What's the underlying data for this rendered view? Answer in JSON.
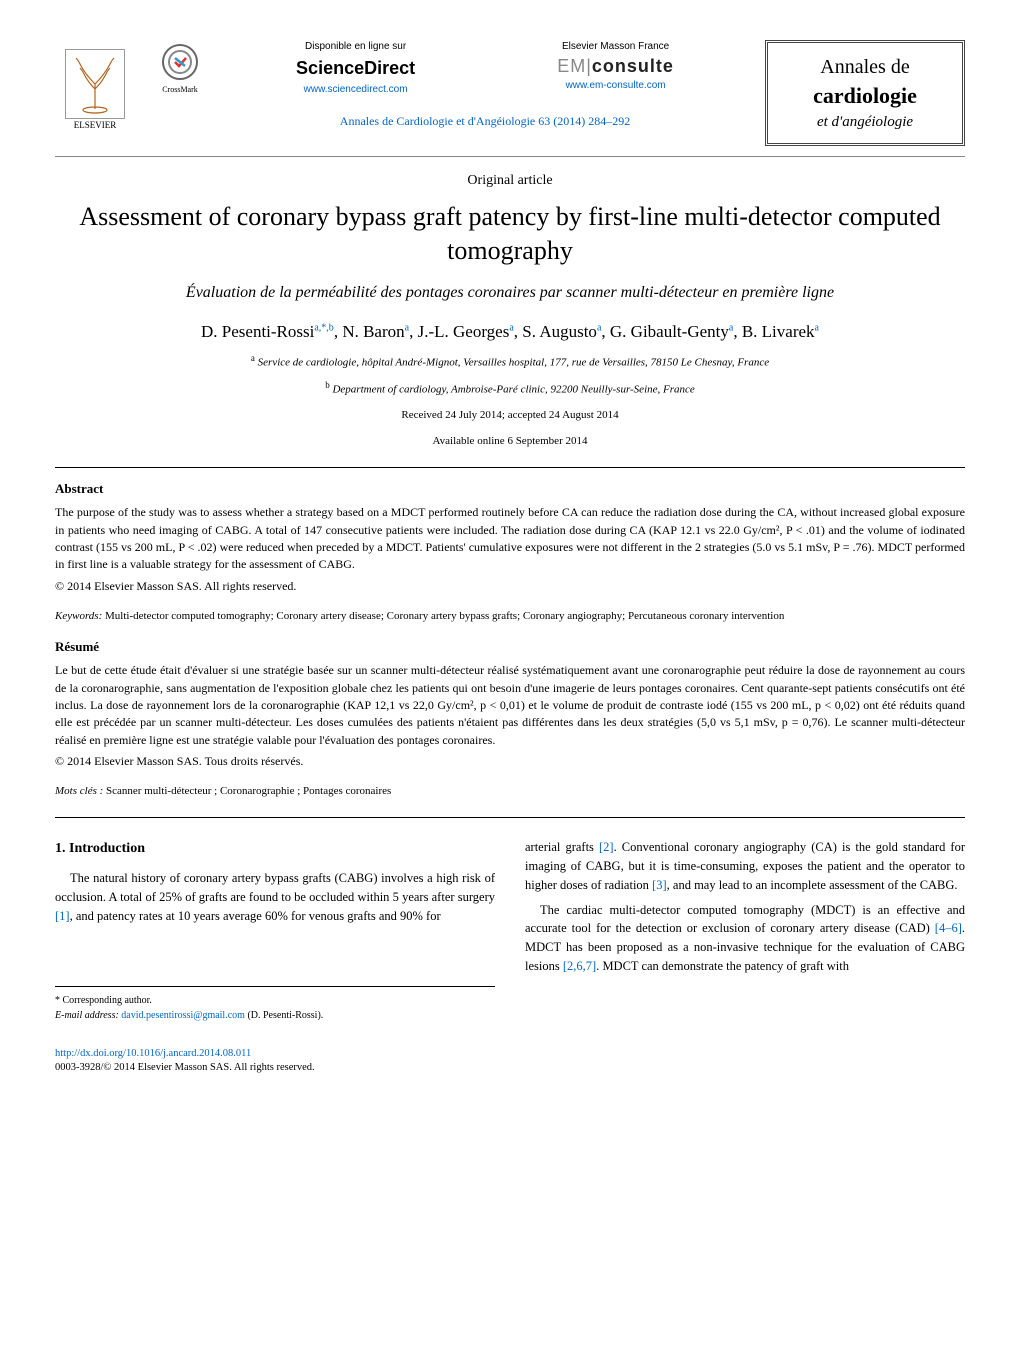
{
  "header": {
    "elsevier_label": "ELSEVIER",
    "crossmark_label": "CrossMark",
    "sciencedirect": {
      "avail": "Disponible en ligne sur",
      "brand": "ScienceDirect",
      "url": "www.sciencedirect.com"
    },
    "emconsulte": {
      "top": "Elsevier Masson France",
      "brand_light": "EM|",
      "brand_bold": "consulte",
      "url": "www.em-consulte.com"
    },
    "journal_ref": "Annales de Cardiologie et d'Angéiologie 63 (2014) 284–292",
    "journal_box": {
      "line1": "Annales de",
      "line2": "cardiologie",
      "line3": "et d'angéiologie"
    }
  },
  "article": {
    "type": "Original article",
    "title": "Assessment of coronary bypass graft patency by first-line multi-detector computed tomography",
    "subtitle": "Évaluation de la perméabilité des pontages coronaires par scanner multi-détecteur en première ligne",
    "authors_html": "D. Pesenti-Rossi",
    "authors": [
      {
        "name": "D. Pesenti-Rossi",
        "sup": "a,*,b"
      },
      {
        "name": "N. Baron",
        "sup": "a"
      },
      {
        "name": "J.-L. Georges",
        "sup": "a"
      },
      {
        "name": "S. Augusto",
        "sup": "a"
      },
      {
        "name": "G. Gibault-Genty",
        "sup": "a"
      },
      {
        "name": "B. Livarek",
        "sup": "a"
      }
    ],
    "affiliations": [
      {
        "sup": "a",
        "text": "Service de cardiologie, hôpital André-Mignot, Versailles hospital, 177, rue de Versailles, 78150 Le Chesnay, France"
      },
      {
        "sup": "b",
        "text": "Department of cardiology, Ambroise-Paré clinic, 92200 Neuilly-sur-Seine, France"
      }
    ],
    "received": "Received 24 July 2014; accepted 24 August 2014",
    "online": "Available online 6 September 2014"
  },
  "abstract": {
    "head": "Abstract",
    "text": "The purpose of the study was to assess whether a strategy based on a MDCT performed routinely before CA can reduce the radiation dose during the CA, without increased global exposure in patients who need imaging of CABG. A total of 147 consecutive patients were included. The radiation dose during CA (KAP 12.1 vs 22.0 Gy/cm², P < .01) and the volume of iodinated contrast (155 vs 200 mL, P < .02) were reduced when preceded by a MDCT. Patients' cumulative exposures were not different in the 2 strategies (5.0 vs 5.1 mSv, P = .76). MDCT performed in first line is a valuable strategy for the assessment of CABG.",
    "copyright": "© 2014 Elsevier Masson SAS. All rights reserved.",
    "keywords_label": "Keywords:",
    "keywords": "Multi-detector computed tomography; Coronary artery disease; Coronary artery bypass grafts; Coronary angiography; Percutaneous coronary intervention"
  },
  "resume": {
    "head": "Résumé",
    "text": "Le but de cette étude était d'évaluer si une stratégie basée sur un scanner multi-détecteur réalisé systématiquement avant une coronarographie peut réduire la dose de rayonnement au cours de la coronarographie, sans augmentation de l'exposition globale chez les patients qui ont besoin d'une imagerie de leurs pontages coronaires. Cent quarante-sept patients consécutifs ont été inclus. La dose de rayonnement lors de la coronarographie (KAP 12,1 vs 22,0 Gy/cm², p < 0,01) et le volume de produit de contraste iodé (155 vs 200 mL, p < 0,02) ont été réduits quand elle est précédée par un scanner multi-détecteur. Les doses cumulées des patients n'étaient pas différentes dans les deux stratégies (5,0 vs 5,1 mSv, p = 0,76). Le scanner multi-détecteur réalisé en première ligne est une stratégie valable pour l'évaluation des pontages coronaires.",
    "copyright": "© 2014 Elsevier Masson SAS. Tous droits réservés.",
    "keywords_label": "Mots clés :",
    "keywords": "Scanner multi-détecteur ; Coronarographie ; Pontages coronaires"
  },
  "body": {
    "intro_head": "1. Introduction",
    "left_p1_a": "The natural history of coronary artery bypass grafts (CABG) involves a high risk of occlusion. A total of 25% of grafts are found to be occluded within 5 years after surgery ",
    "left_ref1": "[1]",
    "left_p1_b": ", and patency rates at 10 years average 60% for venous grafts and 90% for",
    "right_p1_a": "arterial grafts ",
    "right_ref2": "[2]",
    "right_p1_b": ". Conventional coronary angiography (CA) is the gold standard for imaging of CABG, but it is time-consuming, exposes the patient and the operator to higher doses of radiation ",
    "right_ref3": "[3]",
    "right_p1_c": ", and may lead to an incomplete assessment of the CABG.",
    "right_p2_a": "The cardiac multi-detector computed tomography (MDCT) is an effective and accurate tool for the detection or exclusion of coronary artery disease (CAD) ",
    "right_ref46": "[4–6]",
    "right_p2_b": ". MDCT has been proposed as a non-invasive technique for the evaluation of CABG lesions ",
    "right_ref267": "[2,6,7]",
    "right_p2_c": ". MDCT can demonstrate the patency of graft with"
  },
  "footnotes": {
    "corr": "* Corresponding author.",
    "email_label": "E-mail address:",
    "email": "david.pesentirossi@gmail.com",
    "email_who": "(D. Pesenti-Rossi)."
  },
  "doi": {
    "url": "http://dx.doi.org/10.1016/j.ancard.2014.08.011",
    "issn": "0003-3928/© 2014 Elsevier Masson SAS. All rights reserved."
  },
  "colors": {
    "link": "#0066cc",
    "text": "#000000",
    "rule": "#000000"
  }
}
